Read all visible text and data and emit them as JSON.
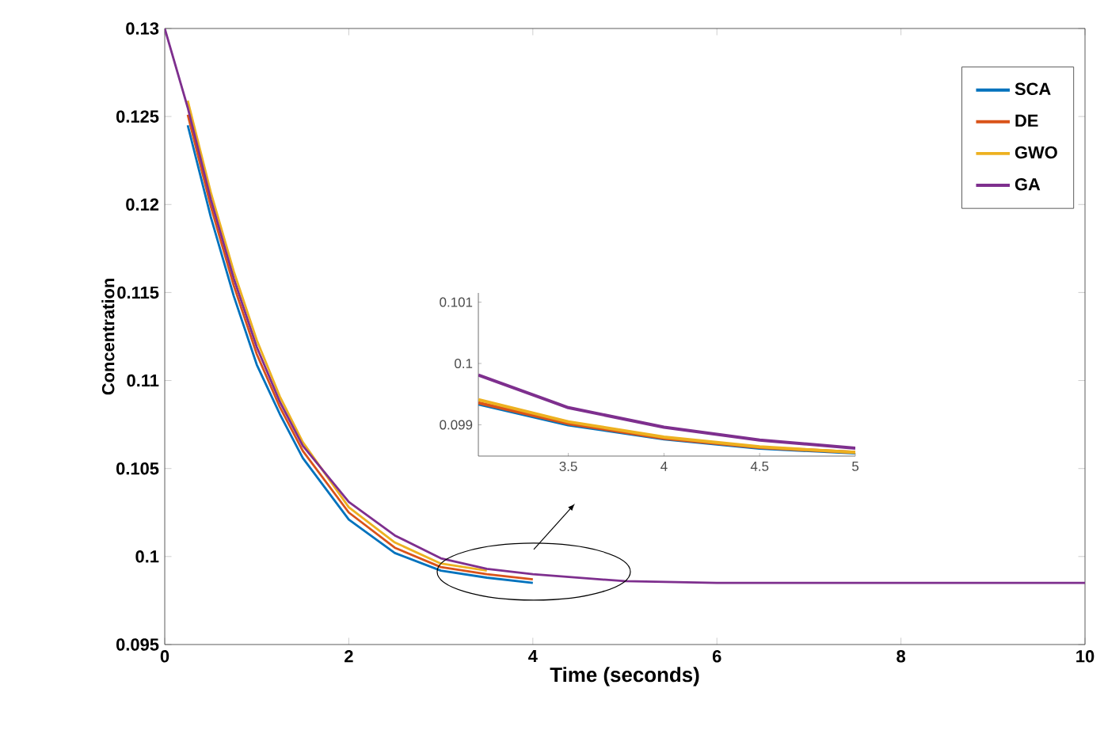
{
  "chart_data": [
    {
      "type": "line",
      "xlabel": "Time (seconds)",
      "ylabel": "Concentration",
      "x": [
        0,
        0.25,
        0.5,
        0.75,
        1,
        1.25,
        1.5,
        2,
        2.5,
        3,
        3.5,
        4,
        5,
        6,
        7,
        8,
        10
      ],
      "series": [
        {
          "name": "SCA",
          "color": "#0072bd",
          "values": [
            null,
            0.1245,
            0.1193,
            0.1148,
            0.1109,
            0.1081,
            0.1056,
            0.1021,
            0.1002,
            0.0992,
            0.0988,
            0.0985,
            null,
            null,
            null,
            null,
            null
          ]
        },
        {
          "name": "DE",
          "color": "#d95319",
          "values": [
            null,
            0.1251,
            0.1199,
            0.1154,
            0.1115,
            0.1085,
            0.106,
            0.1025,
            0.1005,
            0.0994,
            0.099,
            0.0987,
            null,
            null,
            null,
            null,
            null
          ]
        },
        {
          "name": "GWO",
          "color": "#edb120",
          "values": [
            null,
            0.1259,
            0.1207,
            0.1162,
            0.1123,
            0.1091,
            0.1065,
            0.1028,
            0.1008,
            0.0996,
            0.0992,
            null,
            null,
            null,
            null,
            null,
            null
          ]
        },
        {
          "name": "GA",
          "color": "#7e2f8e",
          "values": [
            0.13,
            0.1255,
            0.1203,
            0.1158,
            0.1119,
            0.1088,
            0.1063,
            0.1031,
            0.1012,
            0.0999,
            0.0993,
            0.099,
            0.0986,
            0.0985,
            0.0985,
            0.0985,
            0.0985
          ]
        }
      ],
      "xlim": [
        0,
        10
      ],
      "ylim": [
        0.095,
        0.13
      ],
      "xticks": [
        0,
        2,
        4,
        6,
        8,
        10
      ],
      "yticks": [
        0.095,
        0.1,
        0.105,
        0.11,
        0.115,
        0.12,
        0.125,
        0.13
      ],
      "legend": "top right",
      "grid": false
    },
    {
      "type": "line",
      "x": [
        3.03,
        3.5,
        4,
        4.5,
        5
      ],
      "series": [
        {
          "color": "#0072bd",
          "values": [
            0.09934,
            0.099,
            0.09877,
            0.09862,
            0.09854
          ]
        },
        {
          "color": "#d95319",
          "values": [
            0.09936,
            0.09902,
            0.09878,
            0.09863,
            0.09855
          ]
        },
        {
          "color": "#edb120",
          "values": [
            0.09941,
            0.09905,
            0.0988,
            0.09864,
            0.09855
          ]
        },
        {
          "color": "#7e2f8e",
          "values": [
            0.09981,
            0.09928,
            0.09896,
            0.09875,
            0.09862
          ]
        }
      ],
      "xlim": [
        3.03,
        5
      ],
      "ylim": [
        0.09849,
        0.10115
      ],
      "xticks": [
        3.5,
        4,
        4.5,
        5
      ],
      "yticks": [
        0.099,
        0.1,
        0.101
      ],
      "grid": false
    }
  ]
}
